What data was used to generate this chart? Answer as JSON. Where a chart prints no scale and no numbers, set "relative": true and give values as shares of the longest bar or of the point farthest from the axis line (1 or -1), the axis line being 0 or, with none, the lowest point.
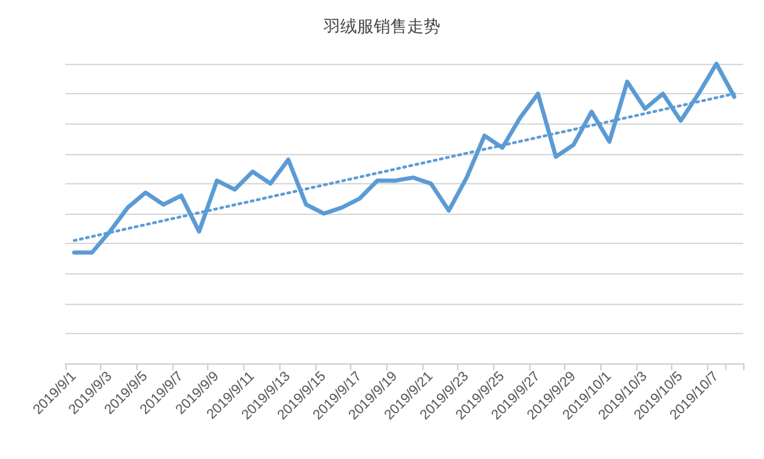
{
  "chart_data": {
    "type": "line",
    "title": "羽绒服销售走势",
    "relative": true,
    "grid": "y",
    "marker": "none",
    "categories": [
      "2019/9/1",
      null,
      "2019/9/3",
      null,
      "2019/9/5",
      null,
      "2019/9/7",
      null,
      "2019/9/9",
      null,
      "2019/9/11",
      null,
      "2019/9/13",
      null,
      "2019/9/15",
      null,
      "2019/9/17",
      null,
      "2019/9/19",
      null,
      "2019/9/21",
      null,
      "2019/9/23",
      null,
      "2019/9/25",
      null,
      "2019/9/27",
      null,
      "2019/9/29",
      null,
      "2019/10/1",
      null,
      "2019/10/3",
      null,
      "2019/10/5",
      null,
      "2019/10/7",
      null
    ],
    "series": [
      {
        "type": "line",
        "color": "#5b9bd5",
        "line_style": "solid",
        "values": [
          0.37,
          0.37,
          0.44,
          0.52,
          0.57,
          0.53,
          0.56,
          0.44,
          0.61,
          0.58,
          0.64,
          0.6,
          0.68,
          0.53,
          0.5,
          0.52,
          0.55,
          0.61,
          0.61,
          0.62,
          0.6,
          0.51,
          0.62,
          0.76,
          0.72,
          0.82,
          0.9,
          0.69,
          0.73,
          0.84,
          0.74,
          0.94,
          0.85,
          0.9,
          0.81,
          0.9,
          1,
          0.89
        ]
      },
      {
        "type": "line",
        "color": "#5b9bd5",
        "line_style": "dotted",
        "values": [
          0.41,
          null,
          null,
          null,
          null,
          null,
          null,
          null,
          null,
          null,
          null,
          null,
          null,
          null,
          null,
          null,
          null,
          null,
          null,
          null,
          null,
          null,
          null,
          null,
          null,
          null,
          null,
          null,
          null,
          null,
          null,
          null,
          null,
          null,
          null,
          null,
          null,
          0.9
        ]
      }
    ]
  }
}
